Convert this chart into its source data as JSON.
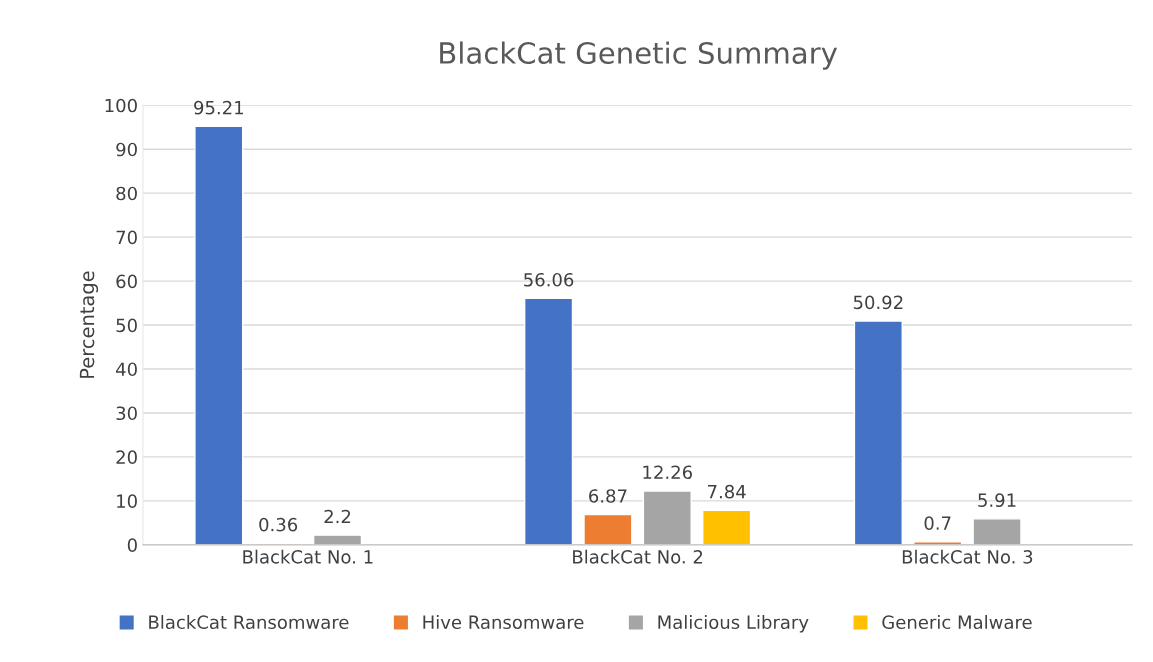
{
  "chart_data": {
    "type": "bar",
    "title": "BlackCat Genetic Summary",
    "ylabel": "Percentage",
    "categories": [
      "BlackCat No. 1",
      "BlackCat No. 2",
      "BlackCat No. 3"
    ],
    "series": [
      {
        "name": "BlackCat Ransomware",
        "color": "#4472c4",
        "values": [
          95.21,
          56.06,
          50.92
        ]
      },
      {
        "name": "Hive Ransomware",
        "color": "#ed7d31",
        "values": [
          0.36,
          6.87,
          0.7
        ]
      },
      {
        "name": "Malicious Library",
        "color": "#a5a5a5",
        "values": [
          2.2,
          12.26,
          5.91
        ]
      },
      {
        "name": "Generic Malware",
        "color": "#ffc000",
        "values": [
          null,
          7.84,
          null
        ]
      }
    ],
    "ylim": [
      0,
      100
    ],
    "yticks": [
      0,
      10,
      20,
      30,
      40,
      50,
      60,
      70,
      80,
      90,
      100
    ],
    "grid": "y",
    "legend": "bottom",
    "data_labels": true
  }
}
